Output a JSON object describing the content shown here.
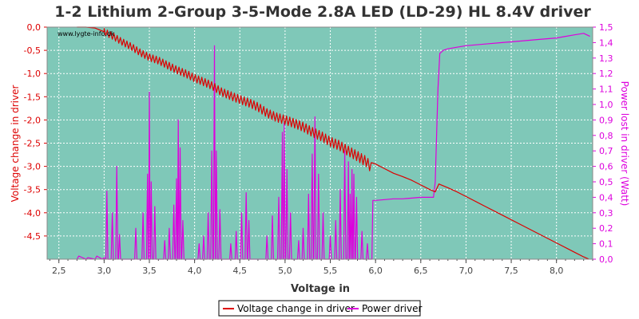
{
  "chart_data": {
    "type": "line",
    "title": "1-2 Lithium 2-Group 3-5-Mode 2.8A LED (LD-29) HL 8.4V driver",
    "xlabel": "Voltage in",
    "ylabel": "Voltage change in driver",
    "y2label": "Power lost in driver (Watt)",
    "watermark": "www.lygte-info.dk",
    "xlim": [
      2.37,
      8.4
    ],
    "ylim": [
      -5.0,
      0.0
    ],
    "y2lim": [
      0.0,
      1.5
    ],
    "xticks": [
      "2,5",
      "3,0",
      "3,5",
      "4,0",
      "4,5",
      "5,0",
      "5,5",
      "6,0",
      "6,5",
      "7,0",
      "7,5",
      "8,0"
    ],
    "yticks": [
      "0,0",
      "-0,5",
      "-1,0",
      "-1,5",
      "-2,0",
      "-2,5",
      "-3,0",
      "-3,5",
      "-4,0",
      "-4,5"
    ],
    "y2ticks": [
      "0,0",
      "0,1",
      "0,2",
      "0,3",
      "0,4",
      "0,5",
      "0,6",
      "0,7",
      "0,8",
      "0,9",
      "1,0",
      "1,1",
      "1,2",
      "1,3",
      "1,4",
      "1,5"
    ],
    "grid": true,
    "legend_position": "bottom",
    "colors": {
      "plot_bg": "#7fc8b8",
      "grid": "#ffffff",
      "voltage": "#dd0000",
      "power": "#dd00dd",
      "left_axis": "#dd0000",
      "right_axis": "#dd00dd",
      "x_axis": "#444444"
    },
    "series": [
      {
        "name": "Voltage change in driver",
        "axis": "left",
        "x": [
          2.7,
          2.8,
          2.9,
          3.0,
          3.1,
          3.2,
          3.3,
          3.4,
          3.5,
          3.6,
          3.7,
          3.8,
          3.9,
          4.0,
          4.1,
          4.2,
          4.3,
          4.4,
          4.5,
          4.6,
          4.7,
          4.8,
          4.9,
          5.0,
          5.1,
          5.2,
          5.3,
          5.4,
          5.5,
          5.6,
          5.7,
          5.8,
          5.9,
          5.96,
          5.97,
          6.0,
          6.1,
          6.2,
          6.3,
          6.4,
          6.5,
          6.6,
          6.66,
          6.7,
          6.8,
          6.9,
          7.0,
          7.2,
          7.4,
          7.6,
          7.8,
          8.0,
          8.2,
          8.3,
          8.36
        ],
        "y": [
          0.0,
          0.0,
          -0.02,
          -0.1,
          -0.2,
          -0.32,
          -0.42,
          -0.55,
          -0.65,
          -0.72,
          -0.82,
          -0.92,
          -1.0,
          -1.1,
          -1.18,
          -1.27,
          -1.4,
          -1.48,
          -1.56,
          -1.63,
          -1.72,
          -1.85,
          -1.94,
          -2.0,
          -2.07,
          -2.15,
          -2.26,
          -2.35,
          -2.47,
          -2.55,
          -2.67,
          -2.78,
          -2.9,
          -3.05,
          -2.93,
          -2.95,
          -3.05,
          -3.15,
          -3.22,
          -3.3,
          -3.4,
          -3.5,
          -3.55,
          -3.38,
          -3.46,
          -3.55,
          -3.65,
          -3.85,
          -4.05,
          -4.25,
          -4.45,
          -4.65,
          -4.85,
          -4.95,
          -5.0
        ],
        "jitter_ranges": [
          [
            3.0,
            5.96
          ]
        ]
      },
      {
        "name": "Power driver",
        "axis": "right",
        "baseline": {
          "x": [
            2.7,
            2.72,
            2.8,
            2.82,
            2.9,
            2.92,
            2.98,
            3.0,
            3.02,
            5.96,
            5.97,
            6.0,
            6.1,
            6.2,
            6.3,
            6.4,
            6.5,
            6.6,
            6.64,
            6.66,
            6.69,
            6.71,
            6.75,
            6.8,
            6.9,
            7.0,
            7.2,
            7.4,
            7.6,
            7.8,
            8.0,
            8.1,
            8.2,
            8.3,
            8.37
          ],
          "y": [
            0.0,
            0.02,
            0.0,
            0.01,
            0.0,
            0.02,
            0.0,
            0.01,
            0.0,
            0.0,
            0.38,
            0.38,
            0.385,
            0.39,
            0.39,
            0.395,
            0.4,
            0.4,
            0.4,
            0.5,
            1.1,
            1.33,
            1.35,
            1.36,
            1.37,
            1.38,
            1.39,
            1.4,
            1.41,
            1.42,
            1.43,
            1.44,
            1.45,
            1.46,
            1.44
          ]
        },
        "spikes": [
          {
            "x": 3.03,
            "y": 0.44
          },
          {
            "x": 3.09,
            "y": 0.3
          },
          {
            "x": 3.14,
            "y": 0.6
          },
          {
            "x": 3.17,
            "y": 0.16
          },
          {
            "x": 3.35,
            "y": 0.2
          },
          {
            "x": 3.43,
            "y": 0.3
          },
          {
            "x": 3.48,
            "y": 0.55
          },
          {
            "x": 3.5,
            "y": 1.08
          },
          {
            "x": 3.52,
            "y": 0.5
          },
          {
            "x": 3.56,
            "y": 0.34
          },
          {
            "x": 3.67,
            "y": 0.12
          },
          {
            "x": 3.72,
            "y": 0.2
          },
          {
            "x": 3.77,
            "y": 0.35
          },
          {
            "x": 3.8,
            "y": 0.52
          },
          {
            "x": 3.82,
            "y": 0.9
          },
          {
            "x": 3.84,
            "y": 0.72
          },
          {
            "x": 3.87,
            "y": 0.25
          },
          {
            "x": 4.05,
            "y": 0.1
          },
          {
            "x": 4.1,
            "y": 0.15
          },
          {
            "x": 4.15,
            "y": 0.3
          },
          {
            "x": 4.19,
            "y": 0.7
          },
          {
            "x": 4.22,
            "y": 1.38
          },
          {
            "x": 4.24,
            "y": 0.7
          },
          {
            "x": 4.28,
            "y": 0.32
          },
          {
            "x": 4.4,
            "y": 0.1
          },
          {
            "x": 4.46,
            "y": 0.18
          },
          {
            "x": 4.52,
            "y": 0.3
          },
          {
            "x": 4.57,
            "y": 0.43
          },
          {
            "x": 4.6,
            "y": 0.25
          },
          {
            "x": 4.8,
            "y": 0.15
          },
          {
            "x": 4.86,
            "y": 0.28
          },
          {
            "x": 4.93,
            "y": 0.4
          },
          {
            "x": 4.97,
            "y": 0.82
          },
          {
            "x": 4.99,
            "y": 0.88
          },
          {
            "x": 5.02,
            "y": 0.58
          },
          {
            "x": 5.06,
            "y": 0.3
          },
          {
            "x": 5.15,
            "y": 0.12
          },
          {
            "x": 5.2,
            "y": 0.2
          },
          {
            "x": 5.26,
            "y": 0.42
          },
          {
            "x": 5.3,
            "y": 0.68
          },
          {
            "x": 5.33,
            "y": 0.92
          },
          {
            "x": 5.37,
            "y": 0.55
          },
          {
            "x": 5.42,
            "y": 0.3
          },
          {
            "x": 5.5,
            "y": 0.15
          },
          {
            "x": 5.56,
            "y": 0.25
          },
          {
            "x": 5.61,
            "y": 0.45
          },
          {
            "x": 5.66,
            "y": 0.7
          },
          {
            "x": 5.7,
            "y": 0.63
          },
          {
            "x": 5.72,
            "y": 0.42
          },
          {
            "x": 5.74,
            "y": 0.58
          },
          {
            "x": 5.76,
            "y": 0.55
          },
          {
            "x": 5.79,
            "y": 0.4
          },
          {
            "x": 5.85,
            "y": 0.18
          },
          {
            "x": 5.91,
            "y": 0.1
          }
        ]
      }
    ]
  }
}
